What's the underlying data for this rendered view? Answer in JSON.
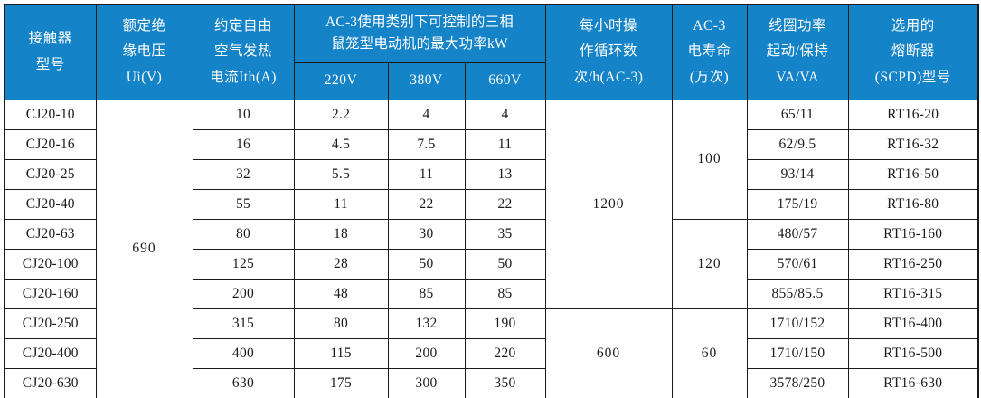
{
  "colors": {
    "header_bg": "#1583c8",
    "header_text": "#ffffff",
    "border": "#1a1a1a",
    "body_text": "#1a1a1a",
    "page_bg": "#ffffff"
  },
  "table": {
    "header": {
      "model": "接触器\n型号",
      "ui": "额定绝\n缘电压\nUi(V)",
      "ith": "约定自由\n空气发热\n电流Ith(A)",
      "ac3_kw": "AC-3使用类别下可控制的三相\n鼠笼型电动机的最大功率kW",
      "v220": "220V",
      "v380": "380V",
      "v660": "660V",
      "cycles": "每小时操\n作循环数\n次/h(AC-3)",
      "life": "AC-3\n电寿命\n(万次)",
      "coil": "线圈功率\n起动/保持\nVA/VA",
      "fuse": "选用的\n熔断器\n(SCPD)型号"
    },
    "merged": {
      "ui": {
        "value": "690",
        "start": 0,
        "span": 10
      },
      "cycles": [
        {
          "value": "1200",
          "start": 0,
          "span": 7
        },
        {
          "value": "600",
          "start": 7,
          "span": 3
        }
      ],
      "life": [
        {
          "value": "100",
          "start": 0,
          "span": 4
        },
        {
          "value": "120",
          "start": 4,
          "span": 3
        },
        {
          "value": "60",
          "start": 7,
          "span": 3
        }
      ]
    },
    "rows": [
      {
        "model": "CJ20-10",
        "ith": "10",
        "kw220": "2.2",
        "kw380": "4",
        "kw660": "4",
        "coil": "65/11",
        "fuse": "RT16-20"
      },
      {
        "model": "CJ20-16",
        "ith": "16",
        "kw220": "4.5",
        "kw380": "7.5",
        "kw660": "11",
        "coil": "62/9.5",
        "fuse": "RT16-32"
      },
      {
        "model": "CJ20-25",
        "ith": "32",
        "kw220": "5.5",
        "kw380": "11",
        "kw660": "13",
        "coil": "93/14",
        "fuse": "RT16-50"
      },
      {
        "model": "CJ20-40",
        "ith": "55",
        "kw220": "11",
        "kw380": "22",
        "kw660": "22",
        "coil": "175/19",
        "fuse": "RT16-80"
      },
      {
        "model": "CJ20-63",
        "ith": "80",
        "kw220": "18",
        "kw380": "30",
        "kw660": "35",
        "coil": "480/57",
        "fuse": "RT16-160"
      },
      {
        "model": "CJ20-100",
        "ith": "125",
        "kw220": "28",
        "kw380": "50",
        "kw660": "50",
        "coil": "570/61",
        "fuse": "RT16-250"
      },
      {
        "model": "CJ20-160",
        "ith": "200",
        "kw220": "48",
        "kw380": "85",
        "kw660": "85",
        "coil": "855/85.5",
        "fuse": "RT16-315"
      },
      {
        "model": "CJ20-250",
        "ith": "315",
        "kw220": "80",
        "kw380": "132",
        "kw660": "190",
        "coil": "1710/152",
        "fuse": "RT16-400"
      },
      {
        "model": "CJ20-400",
        "ith": "400",
        "kw220": "115",
        "kw380": "200",
        "kw660": "220",
        "coil": "1710/150",
        "fuse": "RT16-500"
      },
      {
        "model": "CJ20-630",
        "ith": "630",
        "kw220": "175",
        "kw380": "300",
        "kw660": "350",
        "coil": "3578/250",
        "fuse": "RT16-630"
      }
    ]
  }
}
